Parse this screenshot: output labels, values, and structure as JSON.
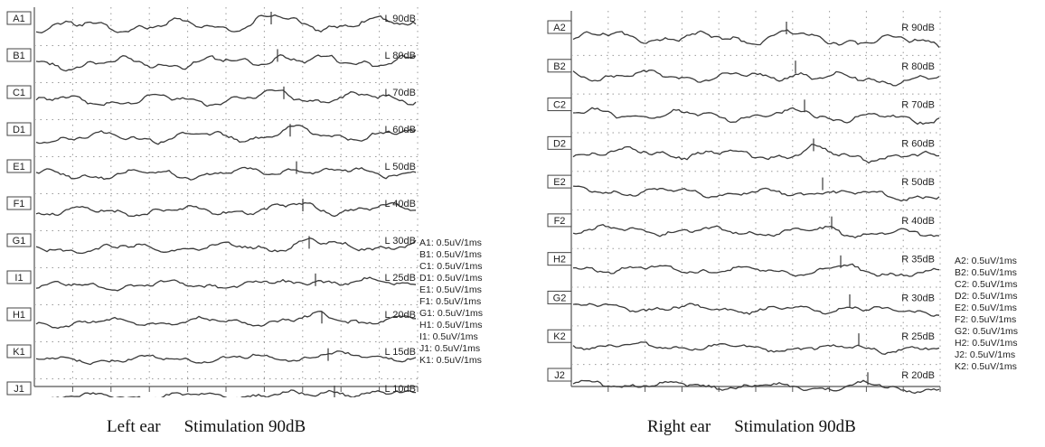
{
  "chart_data": [
    {
      "type": "line",
      "title": "",
      "grid": true,
      "traces": [
        {
          "id": "A1",
          "level": "L 90dB"
        },
        {
          "id": "B1",
          "level": "L 80dB"
        },
        {
          "id": "C1",
          "level": "L 70dB"
        },
        {
          "id": "D1",
          "level": "L 60dB"
        },
        {
          "id": "E1",
          "level": "L 50dB"
        },
        {
          "id": "F1",
          "level": "L 40dB"
        },
        {
          "id": "G1",
          "level": "L 30dB"
        },
        {
          "id": "I1",
          "level": "L 25dB"
        },
        {
          "id": "H1",
          "level": "L 20dB"
        },
        {
          "id": "K1",
          "level": "L 15dB"
        },
        {
          "id": "J1",
          "level": "L 10dB"
        }
      ],
      "scale_legend": [
        "A1: 0.5uV/1ms",
        "B1: 0.5uV/1ms",
        "C1: 0.5uV/1ms",
        "D1: 0.5uV/1ms",
        "E1: 0.5uV/1ms",
        "F1: 0.5uV/1ms",
        "G1: 0.5uV/1ms",
        "H1: 0.5uV/1ms",
        "I1: 0.5uV/1ms",
        "J1: 0.5uV/1ms",
        "K1: 0.5uV/1ms"
      ]
    },
    {
      "type": "line",
      "title": "",
      "grid": true,
      "traces": [
        {
          "id": "A2",
          "level": "R 90dB"
        },
        {
          "id": "B2",
          "level": "R 80dB"
        },
        {
          "id": "C2",
          "level": "R 70dB"
        },
        {
          "id": "D2",
          "level": "R 60dB"
        },
        {
          "id": "E2",
          "level": "R 50dB"
        },
        {
          "id": "F2",
          "level": "R 40dB"
        },
        {
          "id": "H2",
          "level": "R 35dB"
        },
        {
          "id": "G2",
          "level": "R 30dB"
        },
        {
          "id": "K2",
          "level": "R 25dB"
        },
        {
          "id": "J2",
          "level": "R 20dB"
        }
      ],
      "scale_legend": [
        "A2: 0.5uV/1ms",
        "B2: 0.5uV/1ms",
        "C2: 0.5uV/1ms",
        "D2: 0.5uV/1ms",
        "E2: 0.5uV/1ms",
        "F2: 0.5uV/1ms",
        "G2: 0.5uV/1ms",
        "H2: 0.5uV/1ms",
        "J2: 0.5uV/1ms",
        "K2: 0.5uV/1ms"
      ]
    }
  ],
  "captions": {
    "left": {
      "ear": "Left ear",
      "stim": "Stimulation 90dB"
    },
    "right": {
      "ear": "Right ear",
      "stim": "Stimulation 90dB"
    }
  }
}
